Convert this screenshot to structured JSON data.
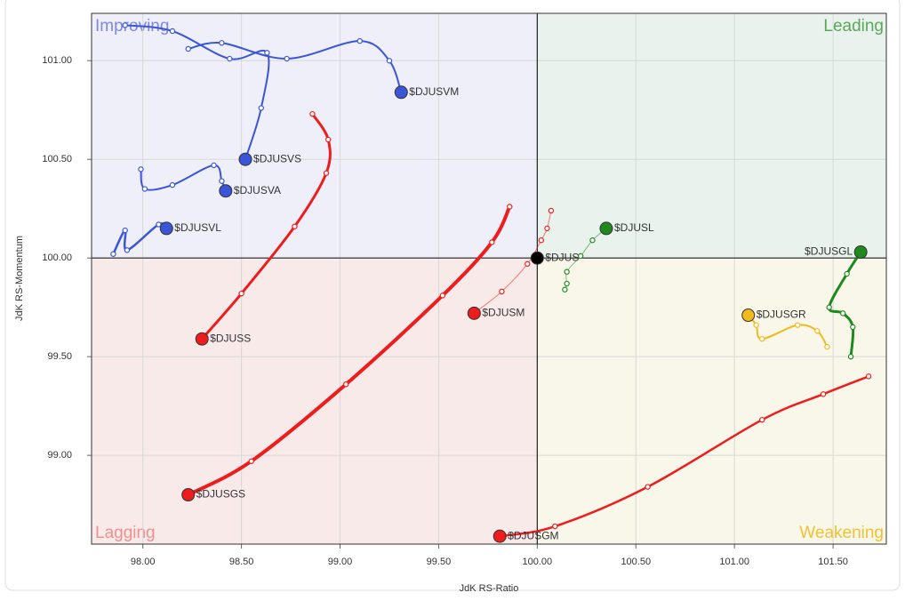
{
  "chart_data": {
    "type": "line",
    "x_label": "JdK RS-Ratio",
    "y_label": "JdK RS-Momentum",
    "xlim": [
      97.74,
      101.77
    ],
    "ylim": [
      98.55,
      101.24
    ],
    "center": [
      100,
      100
    ],
    "grid": true,
    "xticks": [
      {
        "value": 98,
        "label": "98.00"
      },
      {
        "value": 98.5,
        "label": "98.50"
      },
      {
        "value": 99,
        "label": "99.00"
      },
      {
        "value": 99.5,
        "label": "99.50"
      },
      {
        "value": 100,
        "label": "100.00"
      },
      {
        "value": 100.5,
        "label": "100.50"
      },
      {
        "value": 101,
        "label": "101.00"
      },
      {
        "value": 101.5,
        "label": "101.50"
      }
    ],
    "yticks": [
      {
        "value": 99,
        "label": "99.00"
      },
      {
        "value": 99.5,
        "label": "99.50"
      },
      {
        "value": 100,
        "label": "100.00"
      },
      {
        "value": 100.5,
        "label": "100.50"
      },
      {
        "value": 101,
        "label": "101.00"
      }
    ],
    "quadrants": [
      {
        "name": "Improving",
        "corner": "top-left",
        "background": "#eeeff9",
        "color": "#7f88e6"
      },
      {
        "name": "Leading",
        "corner": "top-right",
        "background": "#e9f2ec",
        "color": "#5aa95a"
      },
      {
        "name": "Lagging",
        "corner": "bottom-left",
        "background": "#f9eaea",
        "color": "#f08f8f"
      },
      {
        "name": "Weakening",
        "corner": "bottom-right",
        "background": "#f9f7ea",
        "color": "#f0c232"
      }
    ],
    "series": [
      {
        "name": "$DJUSVM",
        "color": "#3b55d9",
        "line_width": 2,
        "x": [
          98.23,
          98.4,
          98.73,
          99.1,
          99.25,
          99.31
        ],
        "values": [
          101.06,
          101.09,
          101.01,
          101.1,
          101.0,
          100.84
        ]
      },
      {
        "name": "$DJUSVS",
        "color": "#3b55d9",
        "line_width": 2,
        "x": [
          97.91,
          98.15,
          98.44,
          98.63,
          98.6,
          98.52
        ],
        "values": [
          101.18,
          101.15,
          101.01,
          101.04,
          100.76,
          100.5
        ]
      },
      {
        "name": "$DJUSVA",
        "color": "#3b55d9",
        "line_width": 2,
        "x": [
          97.99,
          98.01,
          98.15,
          98.36,
          98.4,
          98.42
        ],
        "values": [
          100.45,
          100.35,
          100.37,
          100.47,
          100.39,
          100.34
        ]
      },
      {
        "name": "$DJUSVL",
        "color": "#3b55d9",
        "line_width": 2.5,
        "x": [
          97.85,
          97.91,
          97.92,
          98.08,
          98.12
        ],
        "values": [
          100.02,
          100.14,
          100.04,
          100.17,
          100.15
        ]
      },
      {
        "name": "$DJUSS",
        "color": "#ee1c1c",
        "line_width": 3,
        "x": [
          98.86,
          98.94,
          98.93,
          98.77,
          98.5,
          98.3
        ],
        "values": [
          100.73,
          100.6,
          100.43,
          100.16,
          99.82,
          99.59
        ]
      },
      {
        "name": "$DJUSGS",
        "color": "#ee1c1c",
        "line_width": 4,
        "x": [
          99.86,
          99.77,
          99.52,
          99.03,
          98.55,
          98.23
        ],
        "values": [
          100.26,
          100.08,
          99.81,
          99.36,
          98.97,
          98.8
        ]
      },
      {
        "name": "$DJUSM",
        "color": "#ee1c1c",
        "line_width": 1,
        "x": [
          100.07,
          100.05,
          100.02,
          99.95,
          99.82,
          99.68
        ],
        "values": [
          100.24,
          100.15,
          100.09,
          99.97,
          99.83,
          99.72
        ]
      },
      {
        "name": "$DJUS",
        "color": "#000000",
        "line_width": 1,
        "x": [
          100
        ],
        "values": [
          100
        ]
      },
      {
        "name": "$DJUSL",
        "color": "#1e8a1e",
        "line_width": 1,
        "x": [
          100.14,
          100.15,
          100.15,
          100.22,
          100.28,
          100.35
        ],
        "values": [
          99.84,
          99.87,
          99.93,
          100.01,
          100.09,
          100.15
        ]
      },
      {
        "name": "$DJUSGL",
        "color": "#1e8a1e",
        "line_width": 3,
        "x": [
          101.59,
          101.6,
          101.55,
          101.48,
          101.57,
          101.64
        ],
        "values": [
          99.5,
          99.65,
          99.72,
          99.75,
          99.92,
          100.03
        ]
      },
      {
        "name": "$DJUSGR",
        "color": "#f2b91e",
        "line_width": 2,
        "x": [
          101.47,
          101.42,
          101.32,
          101.14,
          101.11,
          101.07
        ],
        "values": [
          99.55,
          99.63,
          99.66,
          99.59,
          99.66,
          99.71
        ]
      },
      {
        "name": "$DJUSGM",
        "color": "#ee1c1c",
        "line_width": 2.5,
        "x": [
          101.68,
          101.45,
          101.14,
          100.56,
          100.09,
          99.81
        ],
        "values": [
          99.4,
          99.31,
          99.18,
          98.84,
          98.64,
          98.59
        ]
      }
    ]
  }
}
